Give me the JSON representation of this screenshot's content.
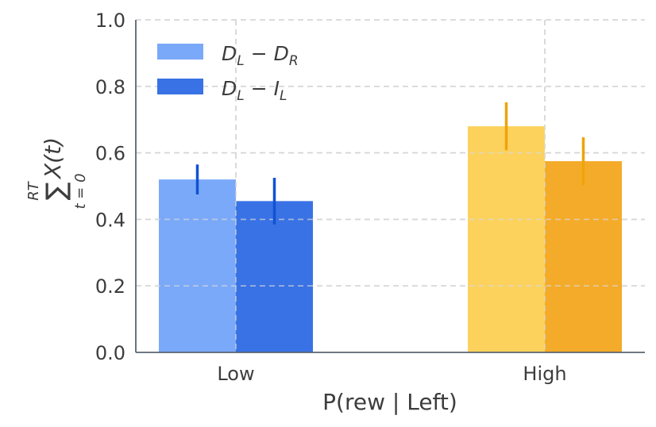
{
  "chart_data": {
    "type": "bar",
    "title": "",
    "xlabel": "P(rew | Left)",
    "ylabel": {
      "sum_symbol": "∑",
      "upper_limit": "RT",
      "lower_limit": "t = 0",
      "body": "X(t)"
    },
    "ylim": [
      0,
      1.0
    ],
    "yticks": [
      "0.0",
      "0.2",
      "0.4",
      "0.6",
      "0.8",
      "1.0"
    ],
    "grid": true,
    "legend_position": "top-left",
    "categories": [
      "Low",
      "High"
    ],
    "series": [
      {
        "name": "D_L − D_R",
        "legend": {
          "main1": "D",
          "sub1": "L",
          "op": " − ",
          "main2": "D",
          "sub2": "R"
        },
        "values": [
          0.52,
          0.68
        ],
        "errors": [
          0.045,
          0.072
        ],
        "colors": [
          "#7aa9f9",
          "#fcd25d"
        ],
        "error_colors": [
          "#1152d4",
          "#f0a30a"
        ]
      },
      {
        "name": "D_L − I_L",
        "legend": {
          "main1": "D",
          "sub1": "L",
          "op": " − ",
          "main2": "I",
          "sub2": "L"
        },
        "values": [
          0.455,
          0.575
        ],
        "errors": [
          0.07,
          0.072
        ],
        "colors": [
          "#3972e4",
          "#f4ab2a"
        ],
        "error_colors": [
          "#1152d4",
          "#f0a30a"
        ]
      }
    ],
    "legend_colors": [
      "#7aa9f9",
      "#3972e4"
    ]
  }
}
